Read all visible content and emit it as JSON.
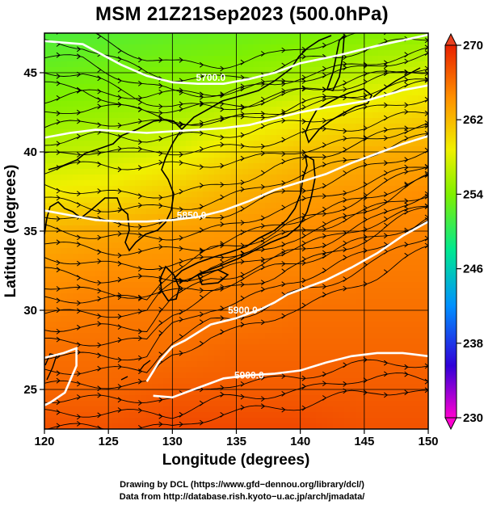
{
  "title": "MSM 21Z21Sep2023 (500.0hPa)",
  "chart_data": {
    "type": "heatmap",
    "title": "MSM 21Z21Sep2023 (500.0hPa)",
    "xlabel": "Longitude (degrees)",
    "ylabel": "Latitude  (degrees)",
    "xlim": [
      120,
      150
    ],
    "ylim": [
      22.5,
      47.5
    ],
    "x_ticks": [
      120,
      125,
      130,
      135,
      140,
      145,
      150
    ],
    "y_ticks": [
      25,
      30,
      35,
      40,
      45
    ],
    "x_tick_labels": [
      "120",
      "125",
      "130",
      "135",
      "140",
      "145",
      "150"
    ],
    "y_tick_labels": [
      "25",
      "30",
      "35",
      "40",
      "45"
    ],
    "grid": true,
    "colorbar": {
      "min": 230,
      "max": 270,
      "ticks": [
        230,
        238,
        246,
        254,
        262,
        270
      ],
      "tick_labels": [
        "230",
        "238",
        "246",
        "254",
        "262",
        "270"
      ],
      "stops": [
        "#ff00d0",
        "#3000d8",
        "#0090ff",
        "#00e890",
        "#80f000",
        "#f0f000",
        "#ff9000",
        "#e82000"
      ]
    },
    "temperature_field": [
      {
        "lat": 47.5,
        "values": [
          251.5,
          252.0,
          252.5,
          253.0,
          253.5,
          254.0,
          254.5
        ]
      },
      {
        "lat": 45,
        "values": [
          253.0,
          253.5,
          254.0,
          254.5,
          255.5,
          256.5,
          257.5
        ]
      },
      {
        "lat": 42.5,
        "values": [
          254.5,
          255.0,
          255.5,
          257.0,
          258.5,
          259.5,
          260.5
        ]
      },
      {
        "lat": 40,
        "values": [
          256.5,
          257.0,
          258.0,
          260.0,
          261.5,
          262.5,
          263.0
        ]
      },
      {
        "lat": 37.5,
        "values": [
          259.0,
          259.5,
          261.0,
          262.5,
          263.5,
          264.0,
          264.5
        ]
      },
      {
        "lat": 35,
        "values": [
          262.5,
          263.0,
          263.5,
          264.0,
          264.5,
          265.0,
          265.0
        ]
      },
      {
        "lat": 32.5,
        "values": [
          264.0,
          264.5,
          264.5,
          265.0,
          265.0,
          265.5,
          265.5
        ]
      },
      {
        "lat": 30,
        "values": [
          265.0,
          265.5,
          265.5,
          265.5,
          266.0,
          266.0,
          266.0
        ]
      },
      {
        "lat": 27.5,
        "values": [
          266.0,
          266.0,
          266.0,
          266.5,
          266.5,
          266.5,
          266.5
        ]
      },
      {
        "lat": 25,
        "values": [
          266.5,
          266.5,
          267.0,
          267.0,
          267.0,
          267.0,
          267.0
        ]
      },
      {
        "lat": 22.5,
        "values": [
          267.5,
          267.5,
          268.0,
          268.0,
          268.0,
          267.5,
          267.5
        ]
      }
    ],
    "contour_lines": [
      {
        "value": "5700.0",
        "label": "5700.0",
        "label_at": [
          133,
          44.5
        ],
        "points": [
          [
            120,
            47
          ],
          [
            123,
            46.8
          ],
          [
            126,
            45.5
          ],
          [
            128,
            44.8
          ],
          [
            130,
            44.4
          ],
          [
            132,
            44.3
          ],
          [
            134,
            44.3
          ],
          [
            136,
            44.6
          ],
          [
            138,
            45.0
          ],
          [
            140,
            45.6
          ],
          [
            143,
            46.1
          ],
          [
            146,
            46.7
          ],
          [
            150,
            47.4
          ]
        ]
      },
      {
        "value": "5800.0",
        "label": "",
        "points": [
          [
            120,
            40.9
          ],
          [
            122,
            41.2
          ],
          [
            124,
            41.4
          ],
          [
            126,
            41.3
          ],
          [
            128,
            41.2
          ],
          [
            130,
            41.3
          ],
          [
            132,
            41.4
          ],
          [
            134,
            41.5
          ],
          [
            136,
            41.7
          ],
          [
            138,
            42.1
          ],
          [
            140,
            42.5
          ],
          [
            142,
            42.8
          ],
          [
            145,
            43.2
          ],
          [
            148,
            43.9
          ],
          [
            150,
            44.2
          ]
        ]
      },
      {
        "value": "5850.0",
        "label": "5850.0",
        "label_at": [
          131.5,
          35.8
        ],
        "points": [
          [
            120,
            36.3
          ],
          [
            122,
            36.0
          ],
          [
            124,
            35.7
          ],
          [
            126,
            35.6
          ],
          [
            128,
            35.6
          ],
          [
            130,
            35.7
          ],
          [
            132,
            35.9
          ],
          [
            134,
            36.3
          ],
          [
            136,
            36.9
          ],
          [
            138,
            37.6
          ],
          [
            140,
            38.1
          ],
          [
            142,
            38.6
          ],
          [
            144,
            39.3
          ],
          [
            146,
            39.9
          ],
          [
            148,
            40.5
          ],
          [
            150,
            41.0
          ]
        ]
      },
      {
        "value": "5900.0",
        "label": "5900.0",
        "label_at": [
          135.5,
          29.8
        ],
        "points": [
          [
            128,
            25.5
          ],
          [
            129,
            26.8
          ],
          [
            130,
            27.7
          ],
          [
            131,
            28.1
          ],
          [
            132,
            28.6
          ],
          [
            133,
            29.1
          ],
          [
            134,
            29.3
          ],
          [
            135,
            29.5
          ],
          [
            136,
            29.8
          ],
          [
            137,
            30.1
          ],
          [
            138,
            30.5
          ],
          [
            139,
            31.0
          ],
          [
            140,
            31.3
          ],
          [
            142,
            31.9
          ],
          [
            144,
            32.7
          ],
          [
            146,
            33.6
          ],
          [
            148,
            34.7
          ],
          [
            150,
            35.6
          ]
        ]
      },
      {
        "value": "5900.0",
        "label": "5900.0",
        "label_at": [
          136,
          25.7
        ],
        "points": [
          [
            128.5,
            24.6
          ],
          [
            130,
            24.5
          ],
          [
            132,
            25.1
          ],
          [
            134,
            25.7
          ],
          [
            136,
            25.9
          ],
          [
            138,
            26.0
          ],
          [
            140,
            26.2
          ],
          [
            142,
            26.7
          ],
          [
            144,
            27.1
          ],
          [
            146,
            27.3
          ],
          [
            148,
            27.3
          ],
          [
            150,
            27.1
          ]
        ]
      },
      {
        "value": "5900.0",
        "label": "",
        "points": [
          [
            120,
            27.0
          ],
          [
            121.5,
            27.3
          ],
          [
            122.5,
            27.6
          ],
          [
            122.5,
            26.5
          ],
          [
            121.6,
            24.8
          ],
          [
            120.5,
            24.2
          ],
          [
            120,
            24.0
          ]
        ]
      }
    ],
    "wind_field": "streamlines, predominantly west-to-east",
    "credits": [
      "Drawing by DCL (https://www.gfd−dennou.org/library/dcl/)",
      "Data from http://database.rish.kyoto−u.ac.jp/arch/jmadata/"
    ]
  }
}
